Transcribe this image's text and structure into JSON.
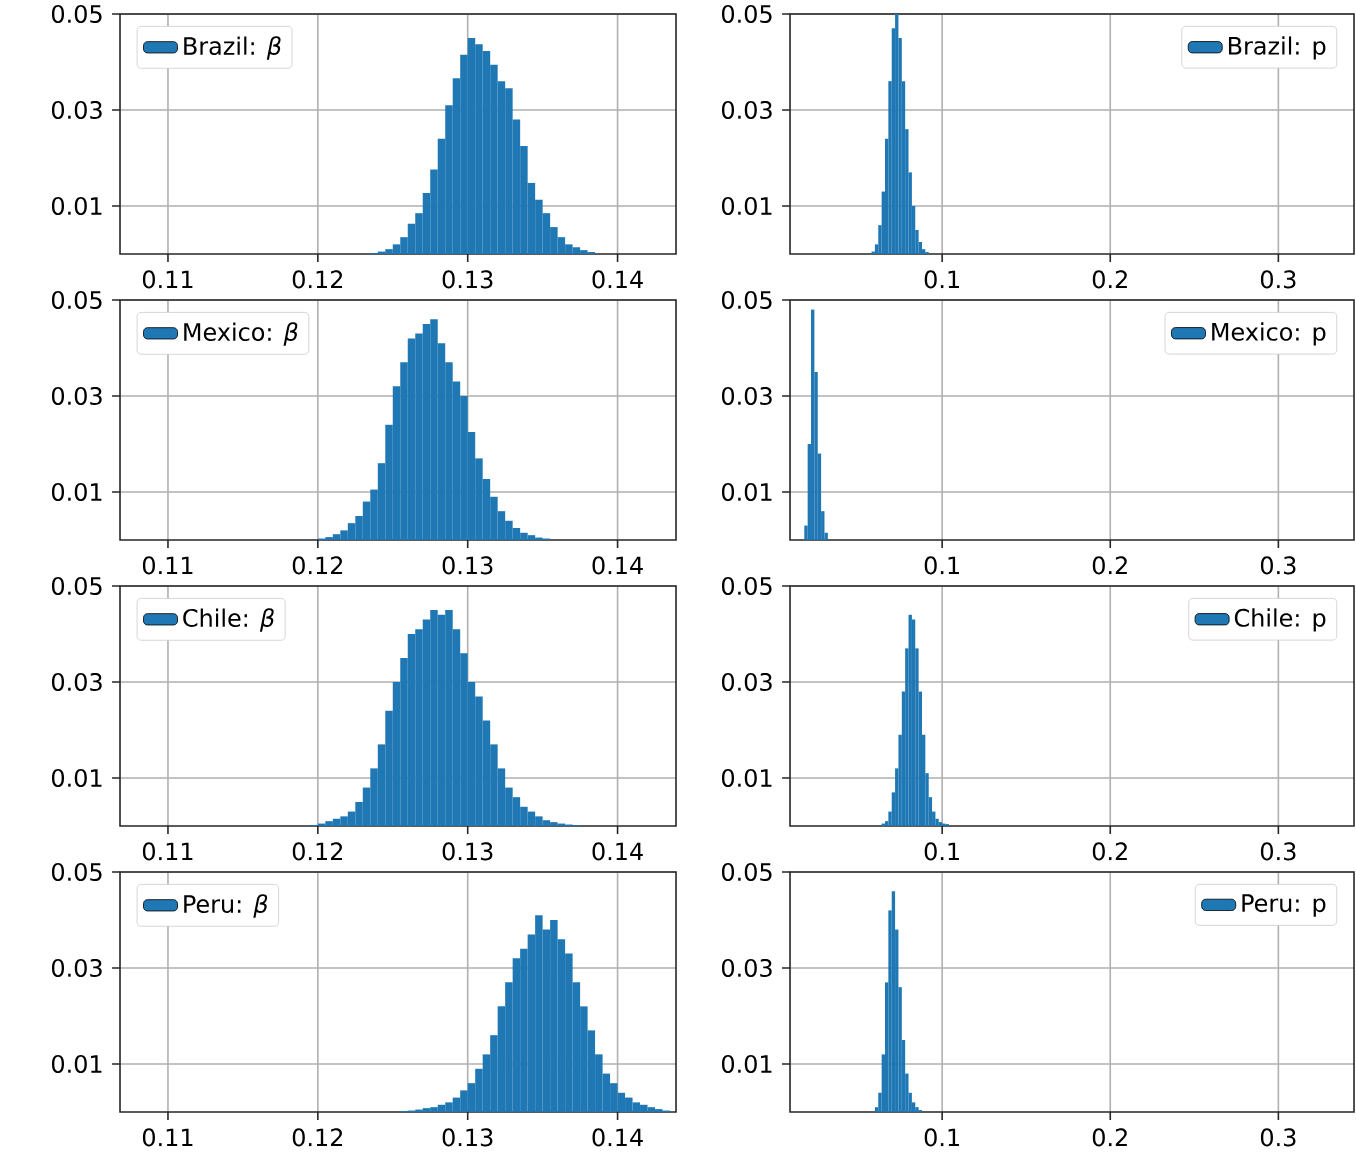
{
  "chart_data": [
    {
      "type": "histogram",
      "legend": "top left",
      "grid": true,
      "xlim": [
        0.1068,
        0.1439
      ],
      "ylim": [
        0,
        0.05
      ],
      "xticks": [
        0.11,
        0.12,
        0.13,
        0.14
      ],
      "yticks": [
        0.01,
        0.03,
        0.05
      ],
      "bins": [
        0.1235,
        0.124,
        0.1245,
        0.125,
        0.1255,
        0.126,
        0.1265,
        0.127,
        0.1275,
        0.128,
        0.1285,
        0.129,
        0.1295,
        0.13,
        0.1305,
        0.131,
        0.1315,
        0.132,
        0.1325,
        0.133,
        0.1335,
        0.134,
        0.1345,
        0.135,
        0.1355,
        0.136,
        0.1365,
        0.137,
        0.1375,
        0.138,
        0.1385
      ],
      "series": [
        {
          "name": "Brazil: *β*",
          "color": "#1f77b4",
          "values": [
            0.0002,
            0.0005,
            0.001,
            0.002,
            0.0035,
            0.0063,
            0.0085,
            0.0127,
            0.0176,
            0.024,
            0.031,
            0.0366,
            0.0415,
            0.045,
            0.0437,
            0.0423,
            0.0394,
            0.036,
            0.0345,
            0.028,
            0.0225,
            0.0148,
            0.0113,
            0.0085,
            0.0056,
            0.0035,
            0.002,
            0.0014,
            0.0008,
            0.0004
          ]
        }
      ]
    },
    {
      "type": "histogram",
      "legend": "top right",
      "grid": true,
      "xlim": [
        0.0095,
        0.345
      ],
      "ylim": [
        0,
        0.05
      ],
      "xticks": [
        0.1,
        0.2,
        0.3
      ],
      "yticks": [
        0.01,
        0.03,
        0.05
      ],
      "bins": [
        0.058,
        0.06,
        0.062,
        0.064,
        0.066,
        0.068,
        0.07,
        0.072,
        0.074,
        0.076,
        0.078,
        0.08,
        0.082,
        0.084,
        0.086,
        0.088,
        0.09,
        0.092
      ],
      "series": [
        {
          "name": "Brazil: p",
          "color": "#1f77b4",
          "values": [
            0.0005,
            0.002,
            0.006,
            0.013,
            0.024,
            0.036,
            0.047,
            0.05,
            0.045,
            0.036,
            0.026,
            0.017,
            0.01,
            0.005,
            0.0025,
            0.001,
            0.0004
          ]
        }
      ]
    },
    {
      "type": "histogram",
      "legend": "top left",
      "grid": true,
      "xlim": [
        0.1068,
        0.1439
      ],
      "ylim": [
        0,
        0.05
      ],
      "xticks": [
        0.11,
        0.12,
        0.13,
        0.14
      ],
      "yticks": [
        0.01,
        0.03,
        0.05
      ],
      "bins": [
        0.12,
        0.1205,
        0.121,
        0.1215,
        0.122,
        0.1225,
        0.123,
        0.1235,
        0.124,
        0.1245,
        0.125,
        0.1255,
        0.126,
        0.1265,
        0.127,
        0.1275,
        0.128,
        0.1285,
        0.129,
        0.1295,
        0.13,
        0.1305,
        0.131,
        0.1315,
        0.132,
        0.1325,
        0.133,
        0.1335,
        0.134,
        0.1345,
        0.135,
        0.1355
      ],
      "series": [
        {
          "name": "Mexico: *β*",
          "color": "#1f77b4",
          "values": [
            0.0003,
            0.0006,
            0.0012,
            0.002,
            0.0035,
            0.005,
            0.008,
            0.0105,
            0.016,
            0.024,
            0.032,
            0.037,
            0.042,
            0.043,
            0.045,
            0.046,
            0.041,
            0.037,
            0.033,
            0.03,
            0.0225,
            0.017,
            0.0127,
            0.009,
            0.006,
            0.004,
            0.0025,
            0.0015,
            0.001,
            0.0005,
            0.0003
          ]
        }
      ]
    },
    {
      "type": "histogram",
      "legend": "top right",
      "grid": true,
      "xlim": [
        0.0095,
        0.345
      ],
      "ylim": [
        0,
        0.05
      ],
      "xticks": [
        0.1,
        0.2,
        0.3
      ],
      "yticks": [
        0.01,
        0.03,
        0.05
      ],
      "bins": [
        0.018,
        0.02,
        0.022,
        0.024,
        0.026,
        0.028,
        0.03,
        0.032
      ],
      "series": [
        {
          "name": "Mexico: p",
          "color": "#1f77b4",
          "values": [
            0.003,
            0.02,
            0.048,
            0.035,
            0.018,
            0.006,
            0.0015
          ]
        }
      ]
    },
    {
      "type": "histogram",
      "legend": "top left",
      "grid": true,
      "xlim": [
        0.1068,
        0.1439
      ],
      "ylim": [
        0,
        0.05
      ],
      "xticks": [
        0.11,
        0.12,
        0.13,
        0.14
      ],
      "yticks": [
        0.01,
        0.03,
        0.05
      ],
      "bins": [
        0.1195,
        0.12,
        0.1205,
        0.121,
        0.1215,
        0.122,
        0.1225,
        0.123,
        0.1235,
        0.124,
        0.1245,
        0.125,
        0.1255,
        0.126,
        0.1265,
        0.127,
        0.1275,
        0.128,
        0.1285,
        0.129,
        0.1295,
        0.13,
        0.1305,
        0.131,
        0.1315,
        0.132,
        0.1325,
        0.133,
        0.1335,
        0.134,
        0.1345,
        0.135,
        0.1355,
        0.136,
        0.1365,
        0.137,
        0.1375
      ],
      "series": [
        {
          "name": "Chile: *β*",
          "color": "#1f77b4",
          "values": [
            0.0002,
            0.0005,
            0.001,
            0.0015,
            0.002,
            0.003,
            0.005,
            0.008,
            0.012,
            0.017,
            0.024,
            0.03,
            0.035,
            0.04,
            0.041,
            0.043,
            0.045,
            0.044,
            0.045,
            0.041,
            0.036,
            0.03,
            0.027,
            0.022,
            0.017,
            0.012,
            0.008,
            0.006,
            0.004,
            0.003,
            0.002,
            0.0012,
            0.0008,
            0.0005,
            0.0003,
            0.0002
          ]
        }
      ]
    },
    {
      "type": "histogram",
      "legend": "top right",
      "grid": true,
      "xlim": [
        0.0095,
        0.345
      ],
      "ylim": [
        0,
        0.05
      ],
      "xticks": [
        0.1,
        0.2,
        0.3
      ],
      "yticks": [
        0.01,
        0.03,
        0.05
      ],
      "bins": [
        0.064,
        0.066,
        0.068,
        0.07,
        0.072,
        0.074,
        0.076,
        0.078,
        0.08,
        0.082,
        0.084,
        0.086,
        0.088,
        0.09,
        0.092,
        0.094,
        0.096,
        0.098,
        0.1,
        0.102,
        0.104
      ],
      "series": [
        {
          "name": "Chile: p",
          "color": "#1f77b4",
          "values": [
            0.0005,
            0.001,
            0.003,
            0.007,
            0.012,
            0.019,
            0.028,
            0.037,
            0.044,
            0.043,
            0.037,
            0.028,
            0.019,
            0.011,
            0.006,
            0.003,
            0.0015,
            0.0008,
            0.0005,
            0.0004
          ]
        }
      ]
    },
    {
      "type": "histogram",
      "legend": "top left",
      "grid": true,
      "xlim": [
        0.1068,
        0.1439
      ],
      "ylim": [
        0,
        0.05
      ],
      "xticks": [
        0.11,
        0.12,
        0.13,
        0.14
      ],
      "yticks": [
        0.01,
        0.03,
        0.05
      ],
      "bins": [
        0.1255,
        0.126,
        0.1265,
        0.127,
        0.1275,
        0.128,
        0.1285,
        0.129,
        0.1295,
        0.13,
        0.1305,
        0.131,
        0.1315,
        0.132,
        0.1325,
        0.133,
        0.1335,
        0.134,
        0.1345,
        0.135,
        0.1355,
        0.136,
        0.1365,
        0.137,
        0.1375,
        0.138,
        0.1385,
        0.139,
        0.1395,
        0.14,
        0.1405,
        0.141,
        0.1415,
        0.142,
        0.1425,
        0.143,
        0.1435
      ],
      "series": [
        {
          "name": "Peru: *β*",
          "color": "#1f77b4",
          "values": [
            0.0002,
            0.0003,
            0.0005,
            0.0008,
            0.001,
            0.0015,
            0.002,
            0.003,
            0.0045,
            0.006,
            0.009,
            0.012,
            0.016,
            0.022,
            0.027,
            0.032,
            0.034,
            0.037,
            0.041,
            0.038,
            0.04,
            0.036,
            0.033,
            0.027,
            0.022,
            0.017,
            0.012,
            0.008,
            0.006,
            0.004,
            0.003,
            0.002,
            0.0015,
            0.001,
            0.0006,
            0.0003
          ]
        }
      ]
    },
    {
      "type": "histogram",
      "legend": "top right",
      "grid": true,
      "xlim": [
        0.0095,
        0.345
      ],
      "ylim": [
        0,
        0.05
      ],
      "xticks": [
        0.1,
        0.2,
        0.3
      ],
      "yticks": [
        0.01,
        0.03,
        0.05
      ],
      "bins": [
        0.06,
        0.062,
        0.064,
        0.066,
        0.068,
        0.07,
        0.072,
        0.074,
        0.076,
        0.078,
        0.08,
        0.082,
        0.084,
        0.086,
        0.088
      ],
      "series": [
        {
          "name": "Peru: p",
          "color": "#1f77b4",
          "values": [
            0.001,
            0.004,
            0.012,
            0.027,
            0.042,
            0.046,
            0.038,
            0.026,
            0.015,
            0.008,
            0.004,
            0.002,
            0.001,
            0.0004
          ]
        }
      ]
    }
  ]
}
